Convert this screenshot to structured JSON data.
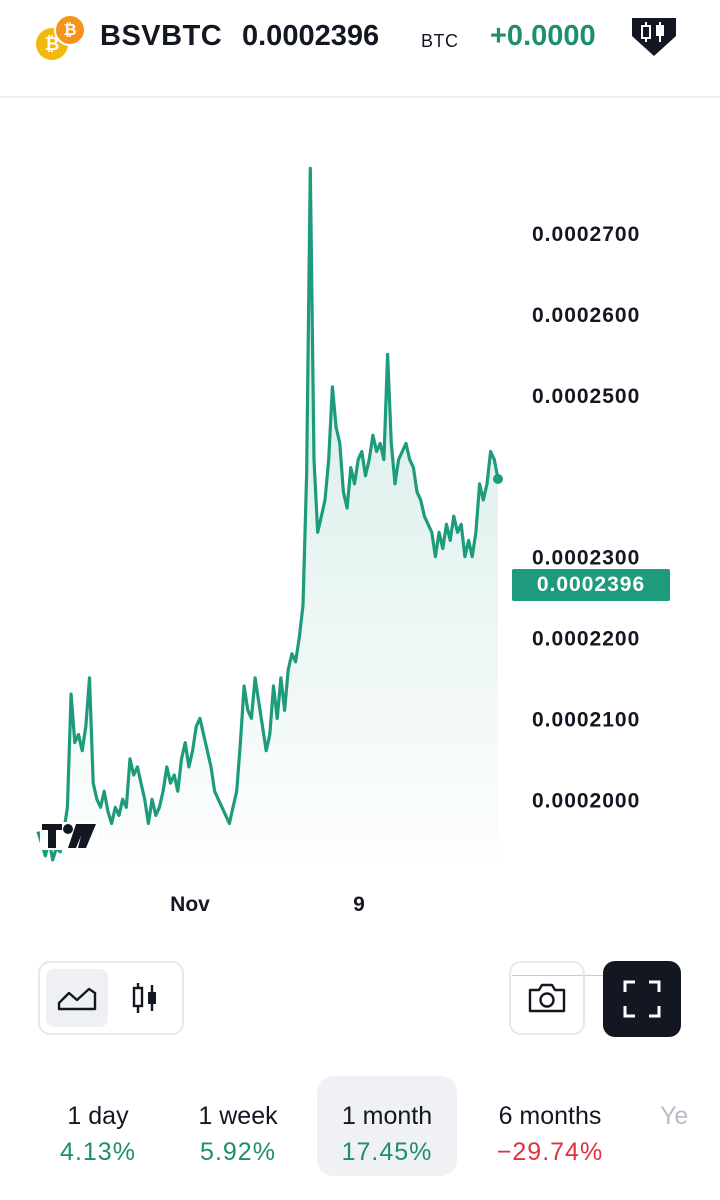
{
  "header": {
    "symbol": "BSVBTC",
    "price": "0.0002396",
    "price_unit": "BTC",
    "change": "+0.0000",
    "coin_icons": [
      "bitcoin-sv-icon",
      "bitcoin-icon"
    ],
    "brand_icon": "candlestick-badge-icon"
  },
  "chart_data": {
    "type": "area",
    "title": "",
    "xlabel": "",
    "ylabel": "",
    "x_ticks": [
      "Nov",
      "9"
    ],
    "y_ticks": [
      "0.0002000",
      "0.0002100",
      "0.0002200",
      "0.0002300",
      "0.0002500",
      "0.0002600",
      "0.0002700"
    ],
    "ylim": [
      0.0001915,
      0.0002778
    ],
    "last_price": "0.0002396",
    "line_color": "#1e9b7c",
    "fill_color": "#1e9b7c",
    "series": [
      {
        "values": [
          0.000196,
          0.0001945,
          0.000193,
          0.000195,
          0.0001925,
          0.000194,
          0.0001935,
          0.000196,
          0.000199,
          0.000213,
          0.000207,
          0.000208,
          0.000206,
          0.000209,
          0.000215,
          0.000202,
          0.0002,
          0.000199,
          0.000201,
          0.0001985,
          0.000197,
          0.000199,
          0.000198,
          0.0002,
          0.000199,
          0.000205,
          0.000203,
          0.000204,
          0.000202,
          0.0002,
          0.000197,
          0.0002,
          0.000198,
          0.000199,
          0.000201,
          0.000204,
          0.000202,
          0.000203,
          0.000201,
          0.000205,
          0.000207,
          0.000204,
          0.000206,
          0.000209,
          0.00021,
          0.000208,
          0.000206,
          0.000204,
          0.000201,
          0.0002,
          0.000199,
          0.000198,
          0.000197,
          0.000199,
          0.000201,
          0.000207,
          0.000214,
          0.000211,
          0.00021,
          0.000215,
          0.000212,
          0.000209,
          0.000206,
          0.000208,
          0.000214,
          0.00021,
          0.000215,
          0.000211,
          0.000216,
          0.000218,
          0.000217,
          0.00022,
          0.000224,
          0.00024,
          0.000278,
          0.000242,
          0.000233,
          0.000235,
          0.000237,
          0.000242,
          0.000251,
          0.000246,
          0.000244,
          0.000238,
          0.000236,
          0.000241,
          0.000239,
          0.000242,
          0.000243,
          0.00024,
          0.000242,
          0.000245,
          0.000243,
          0.000244,
          0.000242,
          0.000255,
          0.000244,
          0.000239,
          0.000242,
          0.000243,
          0.000244,
          0.000242,
          0.000241,
          0.000238,
          0.000237,
          0.000235,
          0.000234,
          0.000233,
          0.00023,
          0.000233,
          0.000231,
          0.000234,
          0.000232,
          0.000235,
          0.000233,
          0.000234,
          0.00023,
          0.000232,
          0.00023,
          0.000233,
          0.000239,
          0.000237,
          0.000239,
          0.000243,
          0.000242,
          0.0002396
        ]
      }
    ]
  },
  "controls": {
    "chart_style_icons": [
      "area-chart-icon",
      "candlestick-chart-icon"
    ],
    "camera_icon": "camera-icon",
    "fullscreen_icon": "fullscreen-icon"
  },
  "periods": [
    {
      "label": "1 day",
      "value": "4.13%",
      "trend": "up"
    },
    {
      "label": "1 week",
      "value": "5.92%",
      "trend": "up"
    },
    {
      "label": "1 month",
      "value": "17.45%",
      "trend": "up",
      "active": true
    },
    {
      "label": "6 months",
      "value": "−29.74%",
      "trend": "down"
    },
    {
      "label": "Ye",
      "value": "",
      "trend": "up"
    }
  ]
}
